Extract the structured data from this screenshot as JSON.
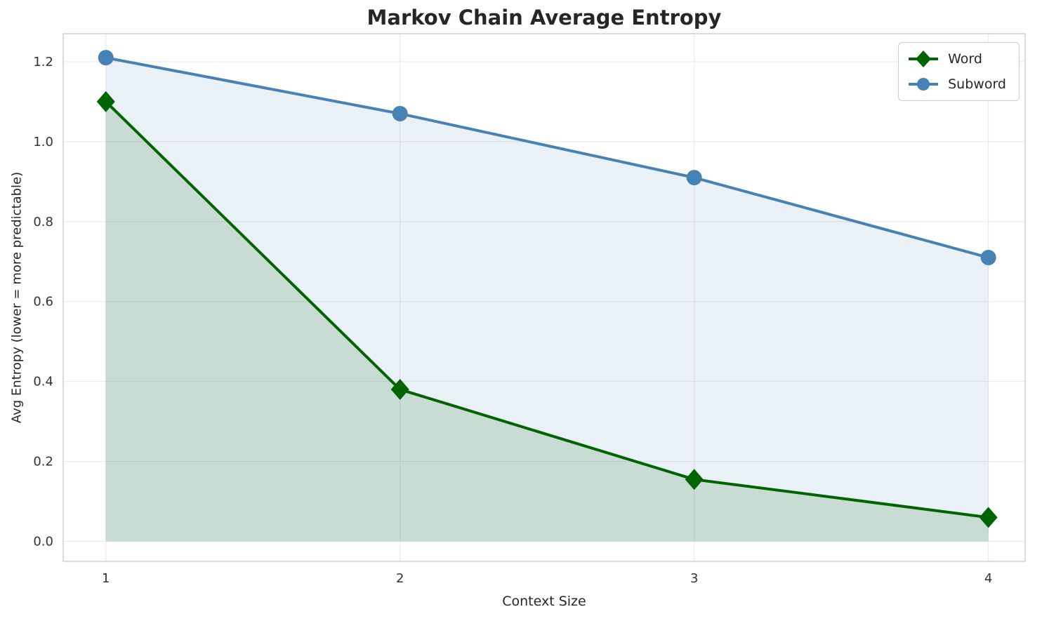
{
  "chart_data": {
    "type": "line",
    "title": "Markov Chain Average Entropy",
    "xlabel": "Context Size",
    "ylabel": "Avg Entropy (lower = more predictable)",
    "x": [
      1,
      2,
      3,
      4
    ],
    "series": [
      {
        "name": "Word",
        "values": [
          1.1,
          0.38,
          0.155,
          0.06
        ],
        "color": "#006400",
        "marker": "diamond",
        "fill_alpha": 0.14,
        "line_width": 4
      },
      {
        "name": "Subword",
        "values": [
          1.21,
          1.07,
          0.91,
          0.71
        ],
        "color": "#4682b4",
        "marker": "circle",
        "fill_alpha": 0.12,
        "line_width": 4
      }
    ],
    "x_ticks": [
      1,
      2,
      3,
      4
    ],
    "x_tick_labels": [
      "1",
      "2",
      "3",
      "4"
    ],
    "y_ticks": [
      0.0,
      0.2,
      0.4,
      0.6,
      0.8,
      1.0,
      1.2
    ],
    "y_tick_labels": [
      "0.0",
      "0.2",
      "0.4",
      "0.6",
      "0.8",
      "1.0",
      "1.2"
    ],
    "xlim": [
      0.855,
      4.125
    ],
    "ylim": [
      -0.05,
      1.27
    ],
    "grid": true,
    "area_fill": true,
    "legend_position": "upper right",
    "grid_color": "#e8e8e8",
    "spine_color": "#cccccc",
    "tick_color": "#333333"
  }
}
